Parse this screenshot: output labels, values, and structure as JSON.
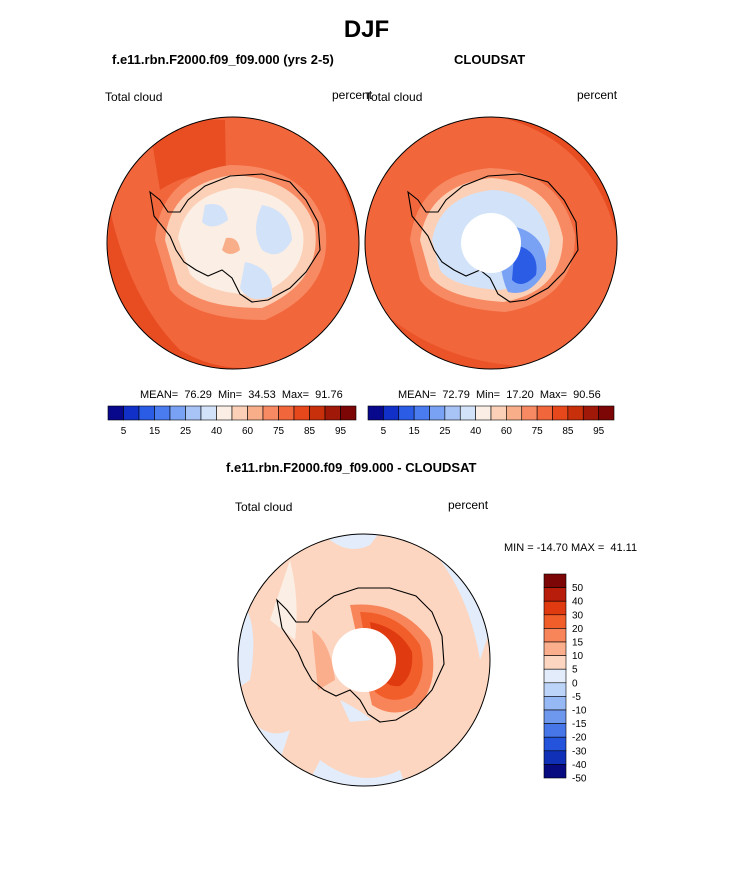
{
  "chart_data": {
    "type": "polar-map",
    "title": "DJF",
    "units": "percent",
    "panels": [
      {
        "id": "model",
        "title": "f.e11.rbn.F2000.f09_f09.000 (yrs 2-5)",
        "field": "Total cloud",
        "units": "percent",
        "stats_label": "MEAN=  76.29  Min=  34.53  Max=  91.76",
        "mean": 76.29,
        "min": 34.53,
        "max": 91.76,
        "has_missing_pole": false
      },
      {
        "id": "obs",
        "title": "CLOUDSAT",
        "field": "Total cloud",
        "units": "percent",
        "stats_label": "MEAN=  72.79  Min=  17.20  Max=  90.56",
        "mean": 72.79,
        "min": 17.2,
        "max": 90.56,
        "has_missing_pole": true
      },
      {
        "id": "diff",
        "title": "f.e11.rbn.F2000.f09_f09.000 - CLOUDSAT",
        "field": "Total cloud",
        "units": "percent",
        "stats_label": "MIN = -14.70 MAX =  41.11",
        "min": -14.7,
        "max": 41.11,
        "has_missing_pole": true
      }
    ],
    "abs_colorbar": {
      "colors": [
        "#08088c",
        "#1030c8",
        "#2a5ce6",
        "#4a7cf0",
        "#7aa2f4",
        "#a8c4f6",
        "#d2e2f8",
        "#fbeee4",
        "#fcd0b6",
        "#f9ae8a",
        "#f78a62",
        "#f2663c",
        "#e6481c",
        "#c8300c",
        "#a01808",
        "#7c0606"
      ],
      "tick_labels": [
        "5",
        "15",
        "25",
        "40",
        "60",
        "75",
        "85",
        "95"
      ]
    },
    "diff_colorbar": {
      "colors": [
        "#7c0606",
        "#b81c0a",
        "#e03a10",
        "#f25e2a",
        "#f8845a",
        "#fbae8c",
        "#fcd6c0",
        "#e2ecfa",
        "#bcd4f8",
        "#96b8f4",
        "#6e98ee",
        "#4676e8",
        "#2454dc",
        "#1030b8",
        "#080a80"
      ],
      "tick_labels": [
        "50",
        "40",
        "30",
        "20",
        "15",
        "10",
        "5",
        "0",
        "-5",
        "-10",
        "-15",
        "-20",
        "-30",
        "-40",
        "-50"
      ]
    }
  }
}
